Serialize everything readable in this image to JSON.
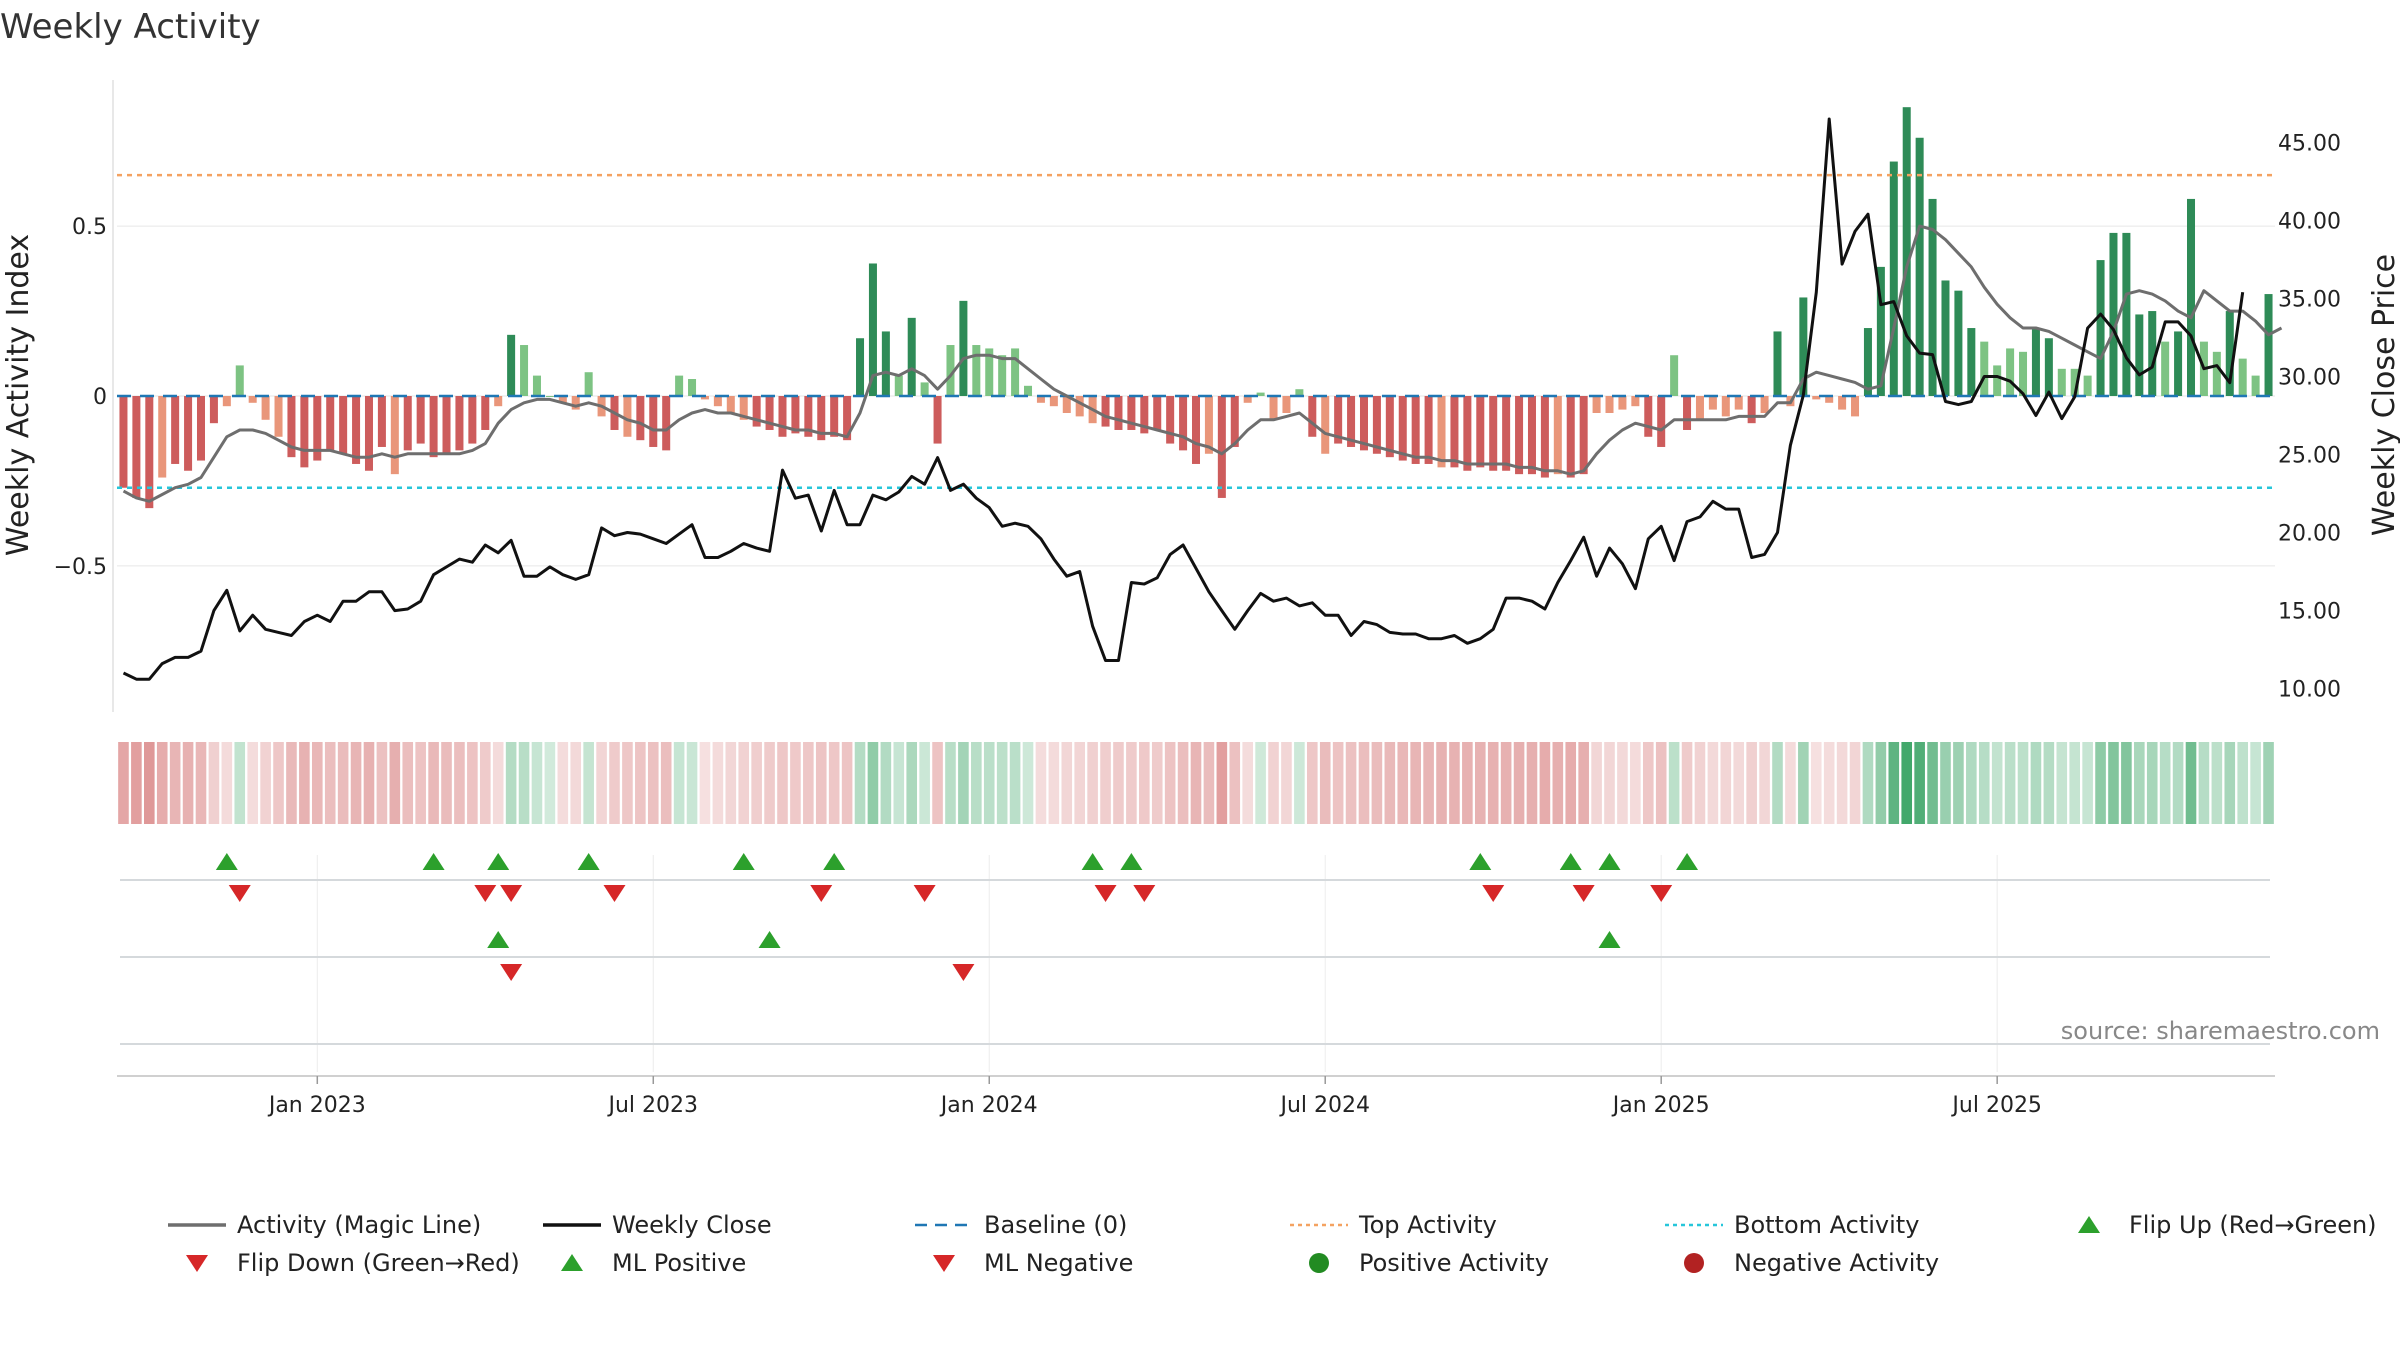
{
  "chart_data": {
    "type": "bar+line",
    "title": "Weekly Activity",
    "ylabel_left": "Weekly Activity Index",
    "ylabel_right": "Weekly Close Price",
    "source": "source: sharemaestro.com",
    "left_ylim": [
      -0.93,
      0.93
    ],
    "right_ylim": [
      8.5,
      49.0
    ],
    "left_ticks": [
      {
        "v": 0.5,
        "label": "0.5"
      },
      {
        "v": 0,
        "label": "0"
      },
      {
        "v": -0.5,
        "label": "−0.5"
      }
    ],
    "right_ticks": [
      {
        "v": 45,
        "label": "45.00"
      },
      {
        "v": 40,
        "label": "40.00"
      },
      {
        "v": 35,
        "label": "35.00"
      },
      {
        "v": 30,
        "label": "30.00"
      },
      {
        "v": 25,
        "label": "25.00"
      },
      {
        "v": 20,
        "label": "20.00"
      },
      {
        "v": 15,
        "label": "15.00"
      },
      {
        "v": 10,
        "label": "10.00"
      }
    ],
    "x_ticks": [
      {
        "week": 15,
        "label": "Jan 2023"
      },
      {
        "week": 41,
        "label": "Jul 2023"
      },
      {
        "week": 67,
        "label": "Jan 2024"
      },
      {
        "week": 93,
        "label": "Jul 2024"
      },
      {
        "week": 119,
        "label": "Jan 2025"
      },
      {
        "week": 145,
        "label": "Jul 2025"
      }
    ],
    "top_activity": 0.65,
    "bottom_activity": -0.27,
    "baseline": 0,
    "activity": [
      -0.27,
      -0.3,
      -0.33,
      -0.24,
      -0.2,
      -0.22,
      -0.19,
      -0.08,
      -0.03,
      0.09,
      -0.02,
      -0.07,
      -0.12,
      -0.18,
      -0.21,
      -0.19,
      -0.16,
      -0.17,
      -0.2,
      -0.22,
      -0.15,
      -0.23,
      -0.16,
      -0.14,
      -0.18,
      -0.17,
      -0.16,
      -0.14,
      -0.1,
      -0.03,
      0.18,
      0.15,
      0.06,
      0.0,
      -0.02,
      -0.04,
      0.07,
      -0.06,
      -0.1,
      -0.12,
      -0.13,
      -0.15,
      -0.16,
      0.06,
      0.05,
      -0.01,
      -0.03,
      -0.05,
      -0.07,
      -0.09,
      -0.1,
      -0.12,
      -0.11,
      -0.12,
      -0.13,
      -0.12,
      -0.13,
      0.17,
      0.39,
      0.19,
      0.06,
      0.23,
      0.04,
      -0.14,
      0.15,
      0.28,
      0.15,
      0.14,
      0.12,
      0.14,
      0.03,
      -0.02,
      -0.03,
      -0.05,
      -0.06,
      -0.08,
      -0.09,
      -0.1,
      -0.1,
      -0.11,
      -0.1,
      -0.14,
      -0.16,
      -0.2,
      -0.17,
      -0.3,
      -0.15,
      -0.02,
      0.01,
      -0.07,
      -0.05,
      0.02,
      -0.12,
      -0.17,
      -0.14,
      -0.15,
      -0.16,
      -0.17,
      -0.18,
      -0.19,
      -0.2,
      -0.2,
      -0.21,
      -0.21,
      -0.22,
      -0.21,
      -0.22,
      -0.22,
      -0.23,
      -0.23,
      -0.24,
      -0.23,
      -0.24,
      -0.23,
      -0.05,
      -0.05,
      -0.04,
      -0.03,
      -0.12,
      -0.15,
      0.12,
      -0.1,
      -0.07,
      -0.04,
      -0.06,
      -0.04,
      -0.08,
      -0.05,
      0.19,
      -0.03,
      0.29,
      -0.01,
      -0.02,
      -0.04,
      -0.06,
      0.2,
      0.38,
      0.69,
      0.85,
      0.76,
      0.58,
      0.34,
      0.31,
      0.2,
      0.16,
      0.09,
      0.14,
      0.13,
      0.2,
      0.17,
      0.08,
      0.08,
      0.06,
      0.4,
      0.48,
      0.48,
      0.24,
      0.25,
      0.16,
      0.19,
      0.58,
      0.16,
      0.13,
      0.25,
      0.11,
      0.06,
      0.3
    ],
    "magic_line": [
      -0.28,
      -0.3,
      -0.31,
      -0.29,
      -0.27,
      -0.26,
      -0.24,
      -0.18,
      -0.12,
      -0.1,
      -0.1,
      -0.11,
      -0.13,
      -0.15,
      -0.16,
      -0.16,
      -0.16,
      -0.17,
      -0.18,
      -0.18,
      -0.17,
      -0.18,
      -0.17,
      -0.17,
      -0.17,
      -0.17,
      -0.17,
      -0.16,
      -0.14,
      -0.08,
      -0.04,
      -0.02,
      -0.01,
      -0.01,
      -0.02,
      -0.03,
      -0.02,
      -0.03,
      -0.05,
      -0.07,
      -0.08,
      -0.1,
      -0.1,
      -0.07,
      -0.05,
      -0.04,
      -0.05,
      -0.05,
      -0.06,
      -0.07,
      -0.08,
      -0.09,
      -0.1,
      -0.1,
      -0.11,
      -0.11,
      -0.12,
      -0.05,
      0.06,
      0.07,
      0.06,
      0.08,
      0.06,
      0.02,
      0.06,
      0.11,
      0.12,
      0.12,
      0.11,
      0.11,
      0.08,
      0.05,
      0.02,
      0.0,
      -0.02,
      -0.04,
      -0.06,
      -0.07,
      -0.08,
      -0.09,
      -0.1,
      -0.11,
      -0.12,
      -0.14,
      -0.15,
      -0.17,
      -0.14,
      -0.1,
      -0.07,
      -0.07,
      -0.06,
      -0.05,
      -0.08,
      -0.11,
      -0.12,
      -0.13,
      -0.14,
      -0.15,
      -0.16,
      -0.17,
      -0.18,
      -0.18,
      -0.19,
      -0.19,
      -0.2,
      -0.2,
      -0.2,
      -0.2,
      -0.21,
      -0.21,
      -0.22,
      -0.22,
      -0.23,
      -0.22,
      -0.17,
      -0.13,
      -0.1,
      -0.08,
      -0.09,
      -0.1,
      -0.07,
      -0.07,
      -0.07,
      -0.07,
      -0.07,
      -0.06,
      -0.06,
      -0.06,
      -0.02,
      -0.02,
      0.05,
      0.07,
      0.06,
      0.05,
      0.04,
      0.02,
      0.03,
      0.2,
      0.38,
      0.5,
      0.49,
      0.46,
      0.42,
      0.38,
      0.32,
      0.27,
      0.23,
      0.2,
      0.2,
      0.19,
      0.17,
      0.15,
      0.13,
      0.11,
      0.19,
      0.3,
      0.31,
      0.3,
      0.28,
      0.25,
      0.23,
      0.31,
      0.28,
      0.25,
      0.25,
      0.22,
      0.18,
      0.2
    ],
    "weekly_close": [
      11.0,
      10.6,
      10.6,
      11.6,
      12.0,
      12.0,
      12.4,
      15.0,
      16.3,
      13.7,
      14.7,
      13.8,
      13.6,
      13.4,
      14.3,
      14.7,
      14.3,
      15.6,
      15.6,
      16.2,
      16.2,
      15.0,
      15.1,
      15.6,
      17.3,
      17.8,
      18.3,
      18.1,
      19.2,
      18.7,
      19.5,
      17.2,
      17.2,
      17.8,
      17.3,
      17.0,
      17.3,
      20.3,
      19.8,
      20.0,
      19.9,
      19.6,
      19.3,
      19.9,
      20.5,
      18.4,
      18.4,
      18.8,
      19.3,
      19.0,
      18.8,
      24.0,
      22.2,
      22.4,
      20.1,
      22.7,
      20.5,
      20.5,
      22.4,
      22.1,
      22.6,
      23.6,
      23.1,
      24.8,
      22.7,
      23.1,
      22.2,
      21.6,
      20.4,
      20.6,
      20.4,
      19.6,
      18.3,
      17.2,
      17.5,
      14.0,
      11.8,
      11.8,
      16.8,
      16.7,
      17.1,
      18.6,
      19.2,
      17.7,
      16.2,
      15.0,
      13.8,
      15.0,
      16.1,
      15.6,
      15.8,
      15.3,
      15.5,
      14.7,
      14.7,
      13.4,
      14.3,
      14.1,
      13.6,
      13.5,
      13.5,
      13.2,
      13.2,
      13.4,
      12.9,
      13.2,
      13.8,
      15.8,
      15.8,
      15.6,
      15.1,
      16.8,
      18.2,
      19.7,
      17.2,
      19.0,
      18.0,
      16.4,
      19.6,
      20.4,
      18.2,
      20.7,
      21.0,
      22.0,
      21.5,
      21.5,
      18.4,
      18.6,
      20.0,
      25.6,
      28.8,
      35.4,
      46.5,
      37.2,
      39.3,
      40.4,
      34.6,
      34.8,
      32.6,
      31.5,
      31.4,
      28.4,
      28.2,
      28.4,
      30.0,
      30.0,
      29.7,
      28.9,
      27.5,
      29.0,
      27.3,
      28.7,
      33.1,
      34.0,
      33.0,
      31.2,
      30.1,
      30.6,
      33.5,
      33.5,
      32.6,
      30.5,
      30.7,
      29.6,
      35.4
    ],
    "flip_up": [
      8,
      24,
      29,
      36,
      48,
      55,
      75,
      78,
      105,
      112,
      115,
      121
    ],
    "flip_down": [
      9,
      28,
      30,
      38,
      54,
      62,
      76,
      79,
      106,
      113,
      119
    ],
    "ml_positive": [
      29,
      50,
      115
    ],
    "ml_negative": [
      30,
      65
    ],
    "legend": [
      {
        "label": "Activity (Magic Line)",
        "kind": "line",
        "color": "#6e6e6e",
        "dash": ""
      },
      {
        "label": "Weekly Close",
        "kind": "line",
        "color": "#111111",
        "dash": ""
      },
      {
        "label": "Baseline (0)",
        "kind": "line",
        "color": "#1f77b4",
        "dash": "12 8"
      },
      {
        "label": "Top Activity",
        "kind": "line",
        "color": "#f4a261",
        "dash": "4 4"
      },
      {
        "label": "Bottom Activity",
        "kind": "line",
        "color": "#26c6da",
        "dash": "4 4"
      },
      {
        "label": "Flip Up (Red→Green)",
        "kind": "tri-up",
        "color": "#2ca02c"
      },
      {
        "label": "Flip Down (Green→Red)",
        "kind": "tri-down",
        "color": "#d62728"
      },
      {
        "label": "ML Positive",
        "kind": "tri-up",
        "color": "#2ca02c"
      },
      {
        "label": "ML Negative",
        "kind": "tri-down",
        "color": "#d62728"
      },
      {
        "label": "Positive Activity",
        "kind": "dot",
        "color": "#228b22"
      },
      {
        "label": "Negative Activity",
        "kind": "dot",
        "color": "#b22222"
      }
    ],
    "colors": {
      "pos_strong": "#2e8b57",
      "pos_light": "#7dc383",
      "neg_strong": "#cd5c5c",
      "neg_light": "#e9967a",
      "magic": "#6e6e6e",
      "close": "#111111",
      "baseline": "#1f77b4",
      "top": "#f4a261",
      "bottom": "#26c6da",
      "up": "#2ca02c",
      "down": "#d62728",
      "strip_pos": "#2e9e5b",
      "strip_neg": "#cd5c5c"
    }
  }
}
